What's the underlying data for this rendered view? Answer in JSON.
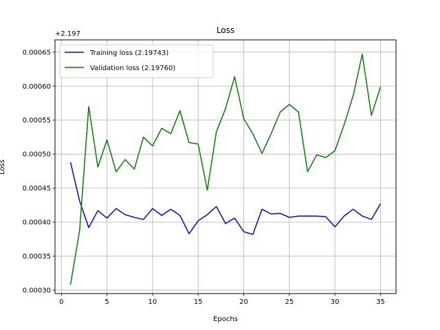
{
  "chart_data": {
    "type": "line",
    "title": "Loss",
    "xlabel": "Epochs",
    "ylabel": "Loss",
    "offset_label": "+2.197",
    "grid": true,
    "legend_position": "top-left",
    "xlim": [
      -0.7,
      36.7
    ],
    "ylim": [
      0.000295,
      0.000668
    ],
    "xticks": [
      0,
      5,
      10,
      15,
      20,
      25,
      30,
      35
    ],
    "xtick_labels": [
      "0",
      "5",
      "10",
      "15",
      "20",
      "25",
      "30",
      "35"
    ],
    "yticks": [
      0.0003,
      0.00035,
      0.0004,
      0.00045,
      0.0005,
      0.00055,
      0.0006,
      0.00065
    ],
    "ytick_labels": [
      "0.00030",
      "0.00035",
      "0.00040",
      "0.00045",
      "0.00050",
      "0.00055",
      "0.00060",
      "0.00065"
    ],
    "x": [
      1,
      2,
      3,
      4,
      5,
      6,
      7,
      8,
      9,
      10,
      11,
      12,
      13,
      14,
      15,
      16,
      17,
      18,
      19,
      20,
      21,
      22,
      23,
      24,
      25,
      26,
      27,
      28,
      29,
      30,
      31,
      32,
      33,
      34,
      35
    ],
    "series": [
      {
        "name": "Training loss (2.19743)",
        "color": "#0000ff",
        "values": [
          0.000488,
          0.000431,
          0.000392,
          0.000417,
          0.000406,
          0.00042,
          0.000411,
          0.000407,
          0.000404,
          0.00042,
          0.00041,
          0.000419,
          0.00041,
          0.000383,
          0.000402,
          0.000411,
          0.000423,
          0.000398,
          0.000406,
          0.000386,
          0.000382,
          0.000419,
          0.000412,
          0.000413,
          0.000407,
          0.000409,
          0.000409,
          0.000409,
          0.000408,
          0.000393,
          0.000409,
          0.000419,
          0.000409,
          0.000404,
          0.000427
        ]
      },
      {
        "name": "Validation loss (2.19760)",
        "color": "#008000",
        "values": [
          0.000308,
          0.000388,
          0.00057,
          0.000481,
          0.000521,
          0.000474,
          0.000492,
          0.000478,
          0.000525,
          0.000512,
          0.000538,
          0.00053,
          0.000564,
          0.000517,
          0.000515,
          0.000447,
          0.000533,
          0.000567,
          0.000614,
          0.000552,
          0.00053,
          0.000501,
          0.00053,
          0.000562,
          0.000573,
          0.000562,
          0.000474,
          0.000499,
          0.000495,
          0.000505,
          0.000543,
          0.000586,
          0.000647,
          0.000557,
          0.000599
        ]
      }
    ]
  }
}
